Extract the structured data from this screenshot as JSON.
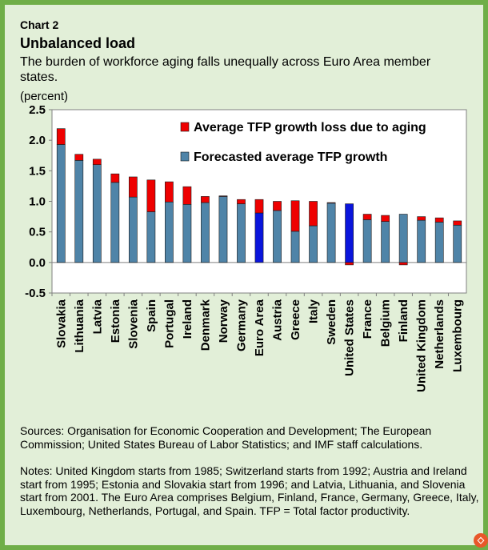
{
  "header": {
    "chart_label": "Chart 2",
    "title": "Unbalanced load",
    "subtitle": "The burden of workforce aging falls unequally across Euro Area member states.",
    "unit": "(percent)"
  },
  "footer": {
    "sources": "Sources: Organisation for Economic Cooperation and Development; The European Commission; United States Bureau of Labor Statistics; and IMF staff calculations.",
    "notes": "Notes: United Kingdom starts from 1985; Switzerland starts from 1992; Austria and Ireland start from 1995; Estonia and Slovakia start from 1996; and Latvia, Lithuania, and Slovenia start from 2001. The Euro Area comprises Belgium, Finland, France, Germany, Greece, Italy, Luxembourg, Netherlands, Portugal, and Spain. TFP = Total factor productivity."
  },
  "colors": {
    "forecast": "#4f84a8",
    "highlight": "#0a15dc",
    "loss": "#ee0000",
    "plot_bg": "#ffffff",
    "frame": "#6fae48",
    "panel": "#e2efd8"
  },
  "chart_data": {
    "type": "bar",
    "stacked": true,
    "ylim": [
      -0.5,
      2.5
    ],
    "yticks": [
      "2.5",
      "2.0",
      "1.5",
      "1.0",
      "0.5",
      "0.0",
      "-0.5"
    ],
    "ytick_values": [
      2.5,
      2.0,
      1.5,
      1.0,
      0.5,
      0.0,
      -0.5
    ],
    "legend_position": "top-right",
    "categories": [
      "Slovakia",
      "Lithuania",
      "Latvia",
      "Estonia",
      "Slovenia",
      "Spain",
      "Portugal",
      "Ireland",
      "Denmark",
      "Norway",
      "Germany",
      "Euro Area",
      "Austria",
      "Greece",
      "Italy",
      "Sweden",
      "United States",
      "France",
      "Belgium",
      "Finland",
      "United Kingdom",
      "Netherlands",
      "Luxembourg"
    ],
    "highlighted": [
      "Euro Area",
      "United States"
    ],
    "series": [
      {
        "name": "Forecasted average TFP growth",
        "values": [
          1.93,
          1.67,
          1.6,
          1.31,
          1.07,
          0.83,
          0.99,
          0.95,
          0.98,
          1.08,
          0.96,
          0.81,
          0.85,
          0.51,
          0.6,
          0.97,
          0.96,
          0.7,
          0.67,
          0.79,
          0.69,
          0.66,
          0.61
        ]
      },
      {
        "name": "Average TFP growth loss due to aging",
        "values": [
          0.26,
          0.1,
          0.09,
          0.14,
          0.33,
          0.52,
          0.33,
          0.29,
          0.1,
          0.01,
          0.07,
          0.22,
          0.15,
          0.5,
          0.4,
          0.01,
          -0.04,
          0.09,
          0.1,
          -0.04,
          0.06,
          0.07,
          0.07
        ]
      }
    ]
  }
}
